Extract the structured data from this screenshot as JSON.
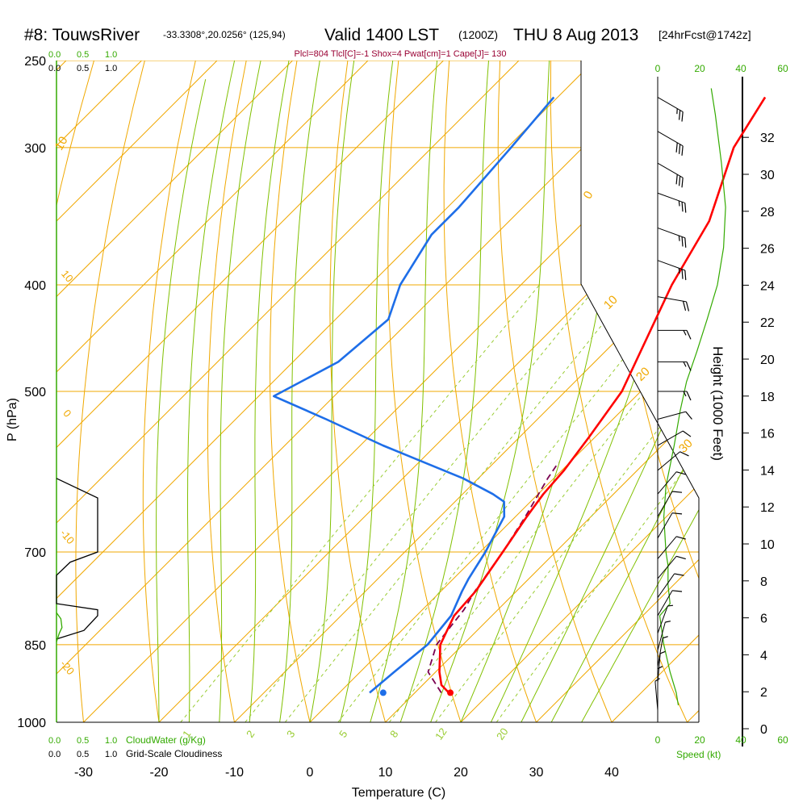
{
  "chart_data": {
    "type": "skew-t sounding",
    "title": {
      "station": "#8: TouwsRiver",
      "location": "-33.3308°,20.0256° (125,94)",
      "valid": "Valid 1400 LST",
      "zulu": "(1200Z)",
      "date": "THU 8 Aug 2013",
      "forecast": "[24hrFcst@1742z]"
    },
    "indices": "Plcl=804 Tlcl[C]=-1 Shox=4 Pwat[cm]=1 Cape[J]= 130",
    "xlabel": "Temperature (C)",
    "ylabel": "P (hPa)",
    "right_label": "Height (1000 Feet)",
    "x_ticks": [
      -30,
      -20,
      -10,
      0,
      10,
      20,
      30,
      40
    ],
    "pressure_ticks": [
      250,
      300,
      400,
      500,
      700,
      850,
      1000
    ],
    "height_ticks": [
      0,
      2,
      4,
      6,
      8,
      10,
      12,
      14,
      16,
      18,
      20,
      22,
      24,
      26,
      28,
      30,
      32
    ],
    "cloudwater_ticks": [
      "0.0",
      "0.5",
      "1.0"
    ],
    "cloudwater_label": "CloudWater (g/Kg)",
    "cloudiness_ticks": [
      "0.0",
      "0.5",
      "1.0"
    ],
    "cloudiness_label": "Grid-Scale Cloudiness",
    "speed_ticks": [
      "0",
      "20",
      "40",
      "60"
    ],
    "speed_label": "Speed (kt)",
    "isotherm_labels": [
      "10",
      "0",
      "10",
      "20",
      "30"
    ],
    "mixing_ratio_labels": [
      "1",
      "2",
      "3",
      "5",
      "8",
      "12",
      "20"
    ],
    "adiabat_labels": [
      "10",
      "0",
      "-10",
      "-20",
      "-30"
    ],
    "temperature_profile": [
      {
        "p": 940,
        "t": 14.5
      },
      {
        "p": 925,
        "t": 12.5
      },
      {
        "p": 900,
        "t": 10.5
      },
      {
        "p": 850,
        "t": 7.0
      },
      {
        "p": 800,
        "t": 5.0
      },
      {
        "p": 760,
        "t": 4.6
      },
      {
        "p": 700,
        "t": 3.0
      },
      {
        "p": 650,
        "t": 1.5
      },
      {
        "p": 620,
        "t": 0.7
      },
      {
        "p": 590,
        "t": 0.3
      },
      {
        "p": 550,
        "t": -0.8
      },
      {
        "p": 500,
        "t": -2.5
      },
      {
        "p": 400,
        "t": -10.0
      },
      {
        "p": 350,
        "t": -13.5
      },
      {
        "p": 300,
        "t": -20.0
      },
      {
        "p": 270,
        "t": -22.5
      }
    ],
    "dewpoint_profile": [
      {
        "p": 940,
        "t": 4.0
      },
      {
        "p": 900,
        "t": 4.5
      },
      {
        "p": 850,
        "t": 5.3
      },
      {
        "p": 800,
        "t": 4.6
      },
      {
        "p": 760,
        "t": 2.8
      },
      {
        "p": 740,
        "t": 2.0
      },
      {
        "p": 700,
        "t": 0.7
      },
      {
        "p": 650,
        "t": -1.5
      },
      {
        "p": 630,
        "t": -3.5
      },
      {
        "p": 620,
        "t": -6.0
      },
      {
        "p": 600,
        "t": -12.0
      },
      {
        "p": 560,
        "t": -27.0
      },
      {
        "p": 530,
        "t": -38.0
      },
      {
        "p": 505,
        "t": -48.0
      },
      {
        "p": 470,
        "t": -44.0
      },
      {
        "p": 430,
        "t": -43.0
      },
      {
        "p": 400,
        "t": -46.0
      },
      {
        "p": 360,
        "t": -48.5
      },
      {
        "p": 340,
        "t": -48.5
      },
      {
        "p": 300,
        "t": -49.5
      },
      {
        "p": 270,
        "t": -50.5
      }
    ],
    "parcel_profile": [
      {
        "p": 940,
        "t": 13.5
      },
      {
        "p": 900,
        "t": 9.0
      },
      {
        "p": 850,
        "t": 6.5
      },
      {
        "p": 820,
        "t": 6.0
      },
      {
        "p": 790,
        "t": 5.5
      },
      {
        "p": 760,
        "t": 4.5
      },
      {
        "p": 700,
        "t": 3.0
      },
      {
        "p": 650,
        "t": 1.3
      },
      {
        "p": 600,
        "t": -0.8
      },
      {
        "p": 580,
        "t": -1.5
      }
    ],
    "surface_temperature": 14.7,
    "surface_dewpoint": 5.8,
    "surface_pressure": 940,
    "cloudwater_profile": [
      {
        "p": 795,
        "v": 0.0
      },
      {
        "p": 805,
        "v": 0.08
      },
      {
        "p": 820,
        "v": 0.1
      },
      {
        "p": 830,
        "v": 0.05
      },
      {
        "p": 845,
        "v": 0.0
      }
    ],
    "cloudiness_profile": [
      {
        "p": 600,
        "v": 0.0
      },
      {
        "p": 625,
        "v": 0.75
      },
      {
        "p": 700,
        "v": 0.75
      },
      {
        "p": 715,
        "v": 0.25
      },
      {
        "p": 735,
        "v": 0.0
      },
      {
        "p": 780,
        "v": 0.0
      },
      {
        "p": 790,
        "v": 0.75
      },
      {
        "p": 800,
        "v": 0.75
      },
      {
        "p": 825,
        "v": 0.5
      },
      {
        "p": 840,
        "v": 0.0
      }
    ],
    "wind_speed_profile": [
      {
        "p": 965,
        "s": 10
      },
      {
        "p": 940,
        "s": 9
      },
      {
        "p": 900,
        "s": 6
      },
      {
        "p": 850,
        "s": 3
      },
      {
        "p": 800,
        "s": 1
      },
      {
        "p": 780,
        "s": 6
      },
      {
        "p": 750,
        "s": 5
      },
      {
        "p": 720,
        "s": 5
      },
      {
        "p": 700,
        "s": 4
      },
      {
        "p": 650,
        "s": 3
      },
      {
        "p": 610,
        "s": 4
      },
      {
        "p": 560,
        "s": 8
      },
      {
        "p": 520,
        "s": 11
      },
      {
        "p": 490,
        "s": 14
      },
      {
        "p": 460,
        "s": 19
      },
      {
        "p": 430,
        "s": 24
      },
      {
        "p": 400,
        "s": 29
      },
      {
        "p": 370,
        "s": 32
      },
      {
        "p": 340,
        "s": 33
      },
      {
        "p": 310,
        "s": 31
      },
      {
        "p": 280,
        "s": 28
      },
      {
        "p": 265,
        "s": 26
      }
    ],
    "wind_barbs": [
      {
        "p": 270,
        "dir": 300,
        "spd": 25
      },
      {
        "p": 290,
        "dir": 300,
        "spd": 30
      },
      {
        "p": 310,
        "dir": 300,
        "spd": 30
      },
      {
        "p": 330,
        "dir": 290,
        "spd": 25
      },
      {
        "p": 355,
        "dir": 290,
        "spd": 25
      },
      {
        "p": 380,
        "dir": 290,
        "spd": 25
      },
      {
        "p": 410,
        "dir": 280,
        "spd": 20
      },
      {
        "p": 440,
        "dir": 270,
        "spd": 15
      },
      {
        "p": 470,
        "dir": 270,
        "spd": 15
      },
      {
        "p": 500,
        "dir": 270,
        "spd": 15
      },
      {
        "p": 530,
        "dir": 255,
        "spd": 10
      },
      {
        "p": 560,
        "dir": 240,
        "spd": 10
      },
      {
        "p": 590,
        "dir": 230,
        "spd": 10
      },
      {
        "p": 620,
        "dir": 220,
        "spd": 10
      },
      {
        "p": 650,
        "dir": 210,
        "spd": 10
      },
      {
        "p": 680,
        "dir": 210,
        "spd": 10
      },
      {
        "p": 710,
        "dir": 220,
        "spd": 10
      },
      {
        "p": 740,
        "dir": 220,
        "spd": 10
      },
      {
        "p": 770,
        "dir": 215,
        "spd": 10
      },
      {
        "p": 800,
        "dir": 210,
        "spd": 10
      },
      {
        "p": 830,
        "dir": 200,
        "spd": 5
      },
      {
        "p": 860,
        "dir": 195,
        "spd": 5
      },
      {
        "p": 890,
        "dir": 190,
        "spd": 5
      },
      {
        "p": 920,
        "dir": 185,
        "spd": 5
      },
      {
        "p": 950,
        "dir": 180,
        "spd": 5
      },
      {
        "p": 975,
        "dir": 175,
        "spd": 5
      }
    ],
    "colors": {
      "temperature": "#ff0000",
      "dewpoint": "#1e6ee8",
      "parcel": "#7a0050",
      "isotherm": "#f0a800",
      "mixing_ratio": "#99cc33",
      "moist_adiabat": "#80c000",
      "axis_green": "#33aa00",
      "indices": "#990033"
    }
  }
}
